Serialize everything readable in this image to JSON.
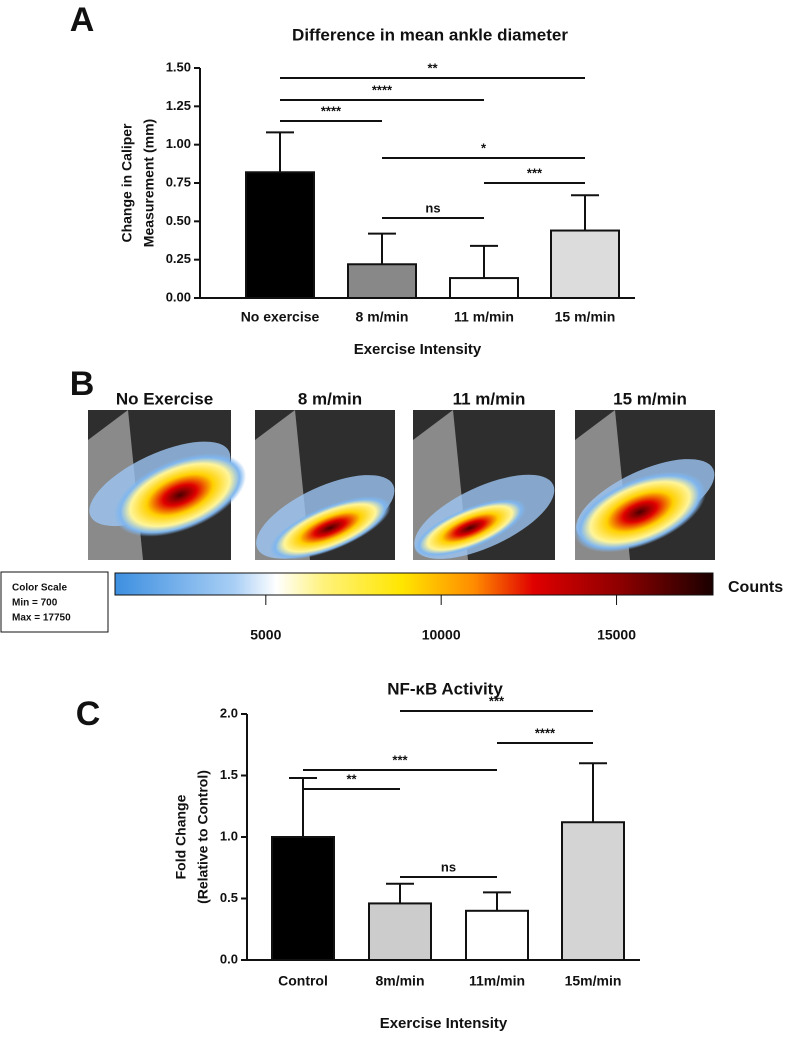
{
  "chart_data": [
    {
      "type": "bar",
      "panel": "A",
      "title": "Difference in mean ankle diameter",
      "ylabel": [
        "Change in Caliper",
        "Measurement (mm)"
      ],
      "xlabel": "Exercise  Intensity",
      "categories": [
        "No exercise",
        "8 m/min",
        "11 m/min",
        "15 m/min"
      ],
      "values": [
        0.82,
        0.22,
        0.13,
        0.44
      ],
      "errors": [
        0.26,
        0.2,
        0.21,
        0.23
      ],
      "colors": [
        "#000000",
        "#888888",
        "#ffffff",
        "#dcdcdc"
      ],
      "ylim": [
        0,
        1.5
      ],
      "yticks": [
        {
          "value": 0,
          "label": "0.00"
        },
        {
          "value": 0.25,
          "label": "0.25"
        },
        {
          "value": 0.5,
          "label": "0.50"
        },
        {
          "value": 0.75,
          "label": "0.75"
        },
        {
          "value": 1,
          "label": "1.00"
        },
        {
          "value": 1.25,
          "label": "1.25"
        },
        {
          "value": 1.5,
          "label": "1.50"
        }
      ],
      "comparisons": [
        {
          "from": "No exercise",
          "to": "15 m/min",
          "label": "**"
        },
        {
          "from": "No exercise",
          "to": "11 m/min",
          "label": "****"
        },
        {
          "from": "No exercise",
          "to": "8 m/min",
          "label": "****"
        },
        {
          "from": "8 m/min",
          "to": "15 m/min",
          "label": "*"
        },
        {
          "from": "11 m/min",
          "to": "15 m/min",
          "label": "***"
        },
        {
          "from": "8 m/min",
          "to": "11 m/min",
          "label": "ns"
        }
      ]
    },
    {
      "type": "colorbar",
      "panel": "B",
      "categories": [
        "No Exercise",
        "8 m/min",
        "11 m/min",
        "15 m/min"
      ],
      "label": "Counts",
      "legend": [
        "Color Scale",
        "Min = 700",
        "Max = 17750"
      ],
      "xlim": [
        700,
        17750
      ],
      "xticks": [
        5000,
        10000,
        15000
      ]
    },
    {
      "type": "bar",
      "panel": "C",
      "title": "NF-κB  Activity",
      "ylabel": [
        "Fold  Change",
        "(Relative to  Control)"
      ],
      "xlabel": "Exercise Intensity",
      "categories": [
        "Control",
        "8m/min",
        "11m/min",
        "15m/min"
      ],
      "values": [
        1.0,
        0.46,
        0.4,
        1.12
      ],
      "errors": [
        0.48,
        0.16,
        0.15,
        0.48
      ],
      "colors": [
        "#000000",
        "#cccccc",
        "#ffffff",
        "#d4d4d4"
      ],
      "ylim": [
        0,
        2.0
      ],
      "yticks": [
        {
          "value": 0,
          "label": "0.0"
        },
        {
          "value": 0.5,
          "label": "0.5"
        },
        {
          "value": 1,
          "label": "1.0"
        },
        {
          "value": 1.5,
          "label": "1.5"
        },
        {
          "value": 2,
          "label": "2.0"
        }
      ],
      "comparisons": [
        {
          "from": "8m/min",
          "to": "15m/min",
          "label": "***"
        },
        {
          "from": "11m/min",
          "to": "15m/min",
          "label": "****"
        },
        {
          "from": "Control",
          "to": "11m/min",
          "label": "***"
        },
        {
          "from": "Control",
          "to": "8m/min",
          "label": "**"
        },
        {
          "from": "8m/min",
          "to": "11m/min",
          "label": "ns"
        }
      ]
    }
  ]
}
